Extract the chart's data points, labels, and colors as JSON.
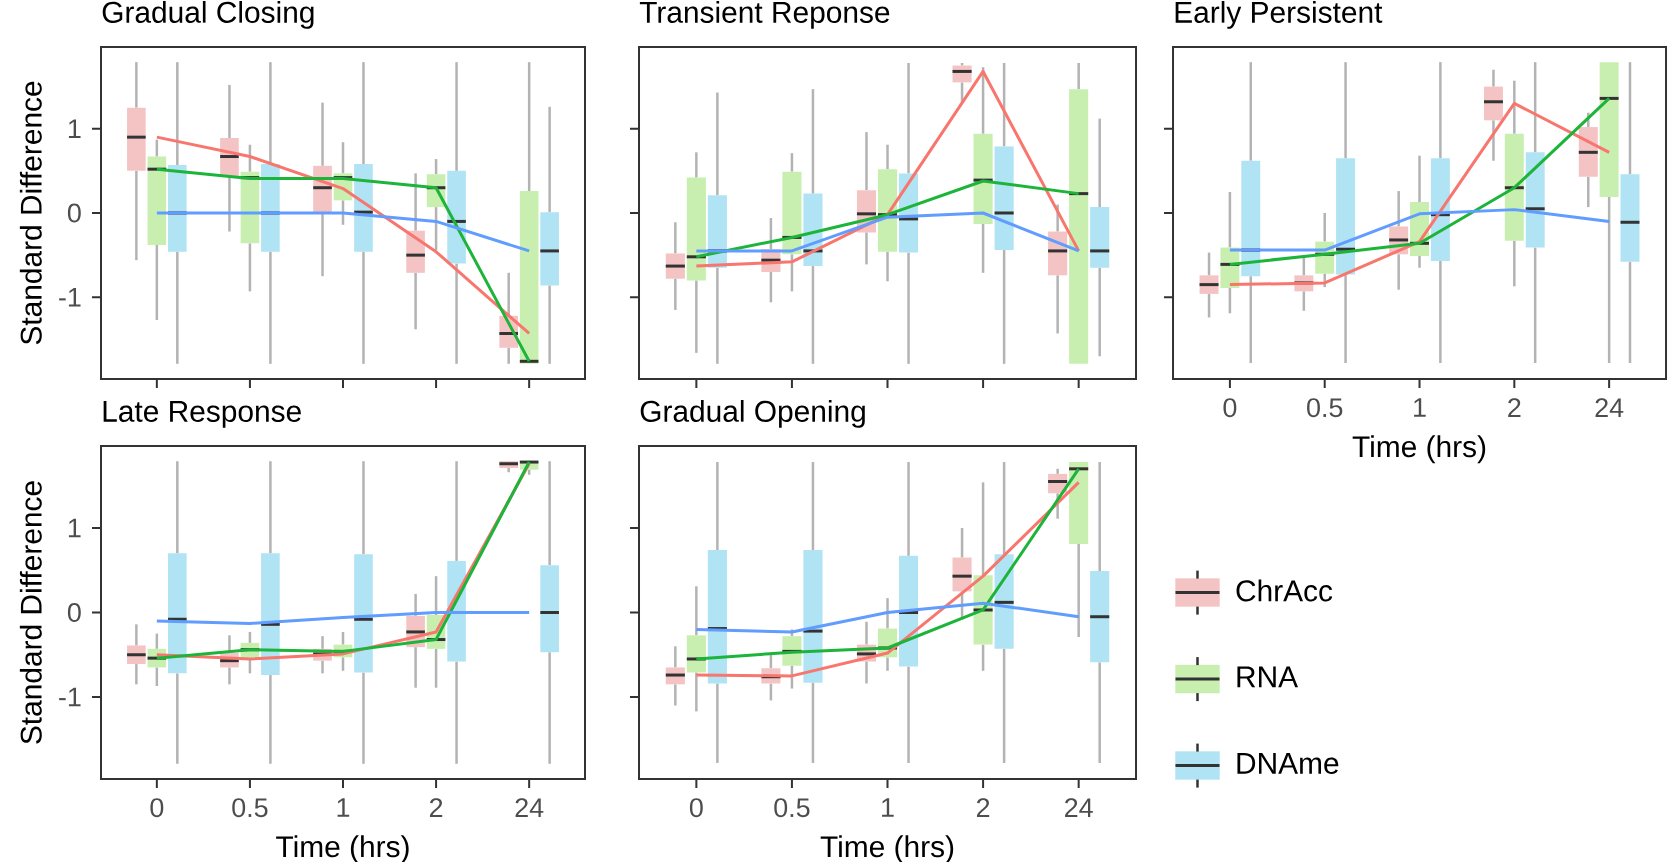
{
  "chart_data": [
    {
      "type": "box",
      "title": "Gradual Closing",
      "ylabel": "Standard Difference",
      "categories": [
        "0",
        "0.5",
        "1",
        "2",
        "24"
      ],
      "ylim": [
        -1.97,
        1.97
      ],
      "yticks": [
        -1,
        0,
        1
      ],
      "tick_labels": "y",
      "series": [
        {
          "color": "#f4c4c4",
          "boxes": [
            {
              "low": -0.56,
              "q1": 0.5,
              "median": 0.9,
              "q3": 1.25,
              "high": 1.79
            },
            {
              "low": -0.22,
              "q1": 0.43,
              "median": 0.67,
              "q3": 0.89,
              "high": 1.52
            },
            {
              "low": -0.75,
              "q1": 0.01,
              "median": 0.3,
              "q3": 0.56,
              "high": 1.31
            },
            {
              "low": -1.38,
              "q1": -0.71,
              "median": -0.5,
              "q3": -0.21,
              "high": 0.47
            },
            {
              "low": -1.79,
              "q1": -1.6,
              "median": -1.43,
              "q3": -1.22,
              "high": -0.71
            }
          ]
        },
        {
          "color": "#c8efb0",
          "boxes": [
            {
              "low": -1.27,
              "q1": -0.38,
              "median": 0.52,
              "q3": 0.67,
              "high": 0.87
            },
            {
              "low": -0.93,
              "q1": -0.36,
              "median": 0.42,
              "q3": 0.49,
              "high": 0.81
            },
            {
              "low": -0.14,
              "q1": 0.15,
              "median": 0.42,
              "q3": 0.47,
              "high": 0.84
            },
            {
              "low": -0.44,
              "q1": 0.07,
              "median": 0.3,
              "q3": 0.46,
              "high": 0.64
            },
            {
              "low": -1.79,
              "q1": -1.79,
              "median": -1.76,
              "q3": 0.26,
              "high": 1.79
            }
          ]
        },
        {
          "color": "#b0e3f4",
          "boxes": [
            {
              "low": -1.79,
              "q1": -0.46,
              "median": 0.0,
              "q3": 0.57,
              "high": 1.79
            },
            {
              "low": -1.79,
              "q1": -0.46,
              "median": 0.0,
              "q3": 0.58,
              "high": 1.79
            },
            {
              "low": -1.79,
              "q1": -0.46,
              "median": 0.01,
              "q3": 0.58,
              "high": 1.79
            },
            {
              "low": -1.79,
              "q1": -0.6,
              "median": -0.1,
              "q3": 0.5,
              "high": 1.79
            },
            {
              "low": -1.79,
              "q1": -0.86,
              "median": -0.45,
              "q3": 0.01,
              "high": 1.26
            }
          ]
        },
        {
          "type": "line",
          "color": "#f8766d",
          "values": [
            0.9,
            0.67,
            0.29,
            -0.46,
            -1.43
          ]
        },
        {
          "type": "line",
          "color": "#1db43a",
          "values": [
            0.52,
            0.41,
            0.41,
            0.3,
            -1.76
          ]
        },
        {
          "type": "line",
          "color": "#619cff",
          "values": [
            0.0,
            0.0,
            0.0,
            -0.1,
            -0.45
          ]
        }
      ]
    },
    {
      "type": "box",
      "title": "Transient Reponse",
      "categories": [
        "0",
        "0.5",
        "1",
        "2",
        "24"
      ],
      "ylim": [
        -1.97,
        1.97
      ],
      "yticks": [
        -1,
        0,
        1
      ],
      "tick_labels": false,
      "series": [
        {
          "color": "#f4c4c4",
          "boxes": [
            {
              "low": -1.15,
              "q1": -0.78,
              "median": -0.63,
              "q3": -0.48,
              "high": -0.11
            },
            {
              "low": -1.06,
              "q1": -0.7,
              "median": -0.56,
              "q3": -0.43,
              "high": -0.06
            },
            {
              "low": -0.61,
              "q1": -0.23,
              "median": -0.01,
              "q3": 0.27,
              "high": 0.96
            },
            {
              "low": 1.3,
              "q1": 1.55,
              "median": 1.68,
              "q3": 1.75,
              "high": 1.78
            },
            {
              "low": -1.43,
              "q1": -0.74,
              "median": -0.45,
              "q3": -0.22,
              "high": 0.1
            }
          ]
        },
        {
          "color": "#c8efb0",
          "boxes": [
            {
              "low": -1.66,
              "q1": -0.8,
              "median": -0.52,
              "q3": 0.42,
              "high": 0.72
            },
            {
              "low": -0.93,
              "q1": -0.49,
              "median": -0.29,
              "q3": 0.49,
              "high": 0.71
            },
            {
              "low": -0.81,
              "q1": -0.46,
              "median": -0.02,
              "q3": 0.52,
              "high": 0.81
            },
            {
              "low": -0.71,
              "q1": -0.13,
              "median": 0.39,
              "q3": 0.94,
              "high": 1.73
            },
            {
              "low": -1.79,
              "q1": -1.79,
              "median": 0.23,
              "q3": 1.47,
              "high": 1.78
            }
          ]
        },
        {
          "color": "#b0e3f4",
          "boxes": [
            {
              "low": -1.79,
              "q1": -0.65,
              "median": -0.45,
              "q3": 0.21,
              "high": 1.43
            },
            {
              "low": -1.79,
              "q1": -0.63,
              "median": -0.45,
              "q3": 0.23,
              "high": 1.47
            },
            {
              "low": -1.79,
              "q1": -0.47,
              "median": -0.07,
              "q3": 0.47,
              "high": 1.78
            },
            {
              "low": -1.79,
              "q1": -0.44,
              "median": 0.0,
              "q3": 0.79,
              "high": 1.78
            },
            {
              "low": -1.7,
              "q1": -0.65,
              "median": -0.45,
              "q3": 0.07,
              "high": 1.12
            }
          ]
        },
        {
          "type": "line",
          "color": "#f8766d",
          "values": [
            -0.63,
            -0.58,
            -0.02,
            1.68,
            -0.45
          ]
        },
        {
          "type": "line",
          "color": "#1db43a",
          "values": [
            -0.52,
            -0.29,
            -0.02,
            0.38,
            0.23
          ]
        },
        {
          "type": "line",
          "color": "#619cff",
          "values": [
            -0.45,
            -0.45,
            -0.05,
            0.0,
            -0.45
          ]
        }
      ]
    },
    {
      "type": "box",
      "title": "Early Persistent",
      "xlabel": "Time (hrs)",
      "categories": [
        "0",
        "0.5",
        "1",
        "2",
        "24"
      ],
      "ylim": [
        -1.97,
        1.97
      ],
      "yticks": [
        -1,
        0,
        1
      ],
      "tick_labels": "x",
      "series": [
        {
          "color": "#f4c4c4",
          "boxes": [
            {
              "low": -1.24,
              "q1": -0.96,
              "median": -0.85,
              "q3": -0.74,
              "high": -0.47
            },
            {
              "low": -1.16,
              "q1": -0.93,
              "median": -0.83,
              "q3": -0.74,
              "high": -0.53
            },
            {
              "low": -0.91,
              "q1": -0.49,
              "median": -0.32,
              "q3": -0.16,
              "high": 0.26
            },
            {
              "low": 0.62,
              "q1": 1.1,
              "median": 1.32,
              "q3": 1.5,
              "high": 1.7
            },
            {
              "low": 0.07,
              "q1": 0.43,
              "median": 0.72,
              "q3": 1.02,
              "high": 1.19
            }
          ]
        },
        {
          "color": "#c8efb0",
          "boxes": [
            {
              "low": -1.19,
              "q1": -0.89,
              "median": -0.61,
              "q3": -0.41,
              "high": 0.25
            },
            {
              "low": -0.88,
              "q1": -0.72,
              "median": -0.49,
              "q3": -0.34,
              "high": 0.0
            },
            {
              "low": -0.65,
              "q1": -0.51,
              "median": -0.36,
              "q3": 0.13,
              "high": 0.68
            },
            {
              "low": -0.87,
              "q1": -0.33,
              "median": 0.3,
              "q3": 0.94,
              "high": 1.57
            },
            {
              "low": -1.78,
              "q1": 0.19,
              "median": 1.36,
              "q3": 1.79,
              "high": 1.79
            }
          ]
        },
        {
          "color": "#b0e3f4",
          "boxes": [
            {
              "low": -1.78,
              "q1": -0.75,
              "median": -0.44,
              "q3": 0.62,
              "high": 1.79
            },
            {
              "low": -1.78,
              "q1": -0.73,
              "median": -0.43,
              "q3": 0.65,
              "high": 1.79
            },
            {
              "low": -1.78,
              "q1": -0.57,
              "median": -0.02,
              "q3": 0.65,
              "high": 1.79
            },
            {
              "low": -1.78,
              "q1": -0.41,
              "median": 0.05,
              "q3": 0.72,
              "high": 1.79
            },
            {
              "low": -1.78,
              "q1": -0.58,
              "median": -0.11,
              "q3": 0.46,
              "high": 1.79
            }
          ]
        },
        {
          "type": "line",
          "color": "#f8766d",
          "values": [
            -0.85,
            -0.83,
            -0.34,
            1.3,
            0.72
          ]
        },
        {
          "type": "line",
          "color": "#1db43a",
          "values": [
            -0.61,
            -0.49,
            -0.36,
            0.3,
            1.36
          ]
        },
        {
          "type": "line",
          "color": "#619cff",
          "values": [
            -0.44,
            -0.44,
            -0.01,
            0.04,
            -0.1
          ]
        }
      ]
    },
    {
      "type": "box",
      "title": "Late Response",
      "xlabel": "Time (hrs)",
      "ylabel": "Standard Difference",
      "categories": [
        "0",
        "0.5",
        "1",
        "2",
        "24"
      ],
      "ylim": [
        -1.97,
        1.97
      ],
      "yticks": [
        -1,
        0,
        1
      ],
      "series": [
        {
          "color": "#f4c4c4",
          "boxes": [
            {
              "low": -0.85,
              "q1": -0.61,
              "median": -0.5,
              "q3": -0.39,
              "high": -0.14
            },
            {
              "low": -0.85,
              "q1": -0.65,
              "median": -0.57,
              "q3": -0.48,
              "high": -0.27
            },
            {
              "low": -0.72,
              "q1": -0.57,
              "median": -0.49,
              "q3": -0.43,
              "high": -0.28
            },
            {
              "low": -0.89,
              "q1": -0.41,
              "median": -0.23,
              "q3": -0.04,
              "high": 0.22
            },
            {
              "low": 1.66,
              "q1": 1.71,
              "median": 1.76,
              "q3": 1.79,
              "high": 1.79
            }
          ]
        },
        {
          "color": "#c8efb0",
          "boxes": [
            {
              "low": -0.87,
              "q1": -0.65,
              "median": -0.54,
              "q3": -0.43,
              "high": -0.25
            },
            {
              "low": -0.72,
              "q1": -0.54,
              "median": -0.44,
              "q3": -0.36,
              "high": -0.23
            },
            {
              "low": -0.69,
              "q1": -0.53,
              "median": -0.46,
              "q3": -0.38,
              "high": -0.23
            },
            {
              "low": -0.89,
              "q1": -0.43,
              "median": -0.32,
              "q3": -0.03,
              "high": 0.43
            },
            {
              "low": 1.63,
              "q1": 1.69,
              "median": 1.78,
              "q3": 1.79,
              "high": 1.79
            }
          ]
        },
        {
          "color": "#b0e3f4",
          "boxes": [
            {
              "low": -1.79,
              "q1": -0.72,
              "median": -0.08,
              "q3": 0.7,
              "high": 1.79
            },
            {
              "low": -1.79,
              "q1": -0.74,
              "median": -0.14,
              "q3": 0.7,
              "high": 1.79
            },
            {
              "low": -1.79,
              "q1": -0.71,
              "median": -0.08,
              "q3": 0.69,
              "high": 1.79
            },
            {
              "low": -1.79,
              "q1": -0.58,
              "median": 0.0,
              "q3": 0.61,
              "high": 1.79
            },
            {
              "low": -1.79,
              "q1": -0.47,
              "median": 0.0,
              "q3": 0.56,
              "high": 1.79
            }
          ]
        },
        {
          "type": "line",
          "color": "#f8766d",
          "values": [
            -0.5,
            -0.55,
            -0.49,
            -0.23,
            1.76
          ]
        },
        {
          "type": "line",
          "color": "#1db43a",
          "values": [
            -0.54,
            -0.44,
            -0.46,
            -0.32,
            1.78
          ]
        },
        {
          "type": "line",
          "color": "#619cff",
          "values": [
            -0.1,
            -0.13,
            -0.06,
            0.0,
            0.0
          ]
        }
      ]
    },
    {
      "type": "box",
      "title": "Gradual Opening",
      "xlabel": "Time (hrs)",
      "categories": [
        "0",
        "0.5",
        "1",
        "2",
        "24"
      ],
      "ylim": [
        -1.97,
        1.97
      ],
      "yticks": [
        -1,
        0,
        1
      ],
      "tick_labels": "x",
      "legend": "right",
      "series": [
        {
          "name": "ChrAcc",
          "color": "#f4c4c4",
          "boxes": [
            {
              "low": -1.1,
              "q1": -0.85,
              "median": -0.74,
              "q3": -0.65,
              "high": -0.4
            },
            {
              "low": -1.04,
              "q1": -0.84,
              "median": -0.76,
              "q3": -0.66,
              "high": -0.48
            },
            {
              "low": -0.84,
              "q1": -0.58,
              "median": -0.49,
              "q3": -0.38,
              "high": -0.11
            },
            {
              "low": -0.08,
              "q1": 0.25,
              "median": 0.43,
              "q3": 0.65,
              "high": 1.0
            },
            {
              "low": 1.11,
              "q1": 1.41,
              "median": 1.55,
              "q3": 1.64,
              "high": 1.7
            }
          ]
        },
        {
          "name": "RNA",
          "color": "#c8efb0",
          "boxes": [
            {
              "low": -1.17,
              "q1": -0.71,
              "median": -0.55,
              "q3": -0.27,
              "high": 0.31
            },
            {
              "low": -0.9,
              "q1": -0.63,
              "median": -0.46,
              "q3": -0.28,
              "high": -0.2
            },
            {
              "low": -0.69,
              "q1": -0.53,
              "median": -0.42,
              "q3": -0.19,
              "high": 0.17
            },
            {
              "low": -0.69,
              "q1": -0.38,
              "median": 0.03,
              "q3": 0.44,
              "high": 1.54
            },
            {
              "low": -0.29,
              "q1": 0.81,
              "median": 1.7,
              "q3": 1.78,
              "high": 1.78
            }
          ]
        },
        {
          "name": "DNAme",
          "color": "#b0e3f4",
          "boxes": [
            {
              "low": -1.78,
              "q1": -0.84,
              "median": -0.19,
              "q3": 0.74,
              "high": 1.78
            },
            {
              "low": -1.78,
              "q1": -0.83,
              "median": -0.22,
              "q3": 0.74,
              "high": 1.78
            },
            {
              "low": -1.78,
              "q1": -0.64,
              "median": 0.0,
              "q3": 0.67,
              "high": 1.78
            },
            {
              "low": -1.78,
              "q1": -0.43,
              "median": 0.12,
              "q3": 0.69,
              "high": 1.78
            },
            {
              "low": -1.78,
              "q1": -0.59,
              "median": -0.05,
              "q3": 0.49,
              "high": 1.78
            }
          ]
        },
        {
          "type": "line",
          "color": "#f8766d",
          "values": [
            -0.74,
            -0.75,
            -0.48,
            0.43,
            1.54
          ]
        },
        {
          "type": "line",
          "color": "#1db43a",
          "values": [
            -0.55,
            -0.47,
            -0.42,
            0.03,
            1.7
          ]
        },
        {
          "type": "line",
          "color": "#619cff",
          "values": [
            -0.2,
            -0.23,
            0.0,
            0.11,
            -0.05
          ]
        }
      ]
    }
  ]
}
